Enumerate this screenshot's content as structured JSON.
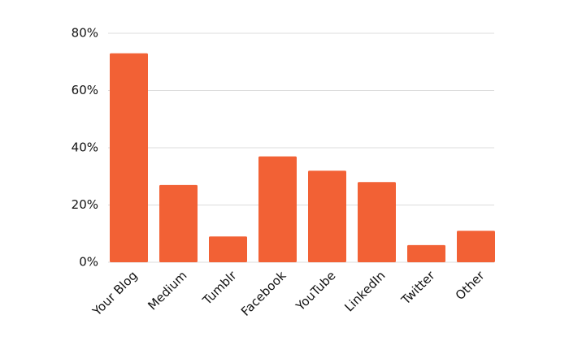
{
  "chart_data": {
    "type": "bar",
    "categories": [
      "Your Blog",
      "Medium",
      "Tumblr",
      "Facebook",
      "YouTube",
      "LinkedIn",
      "Twitter",
      "Other"
    ],
    "values": [
      73,
      27,
      9,
      37,
      32,
      28,
      6,
      11
    ],
    "color": "#f26135",
    "ylim": [
      0,
      80
    ],
    "yticks": [
      {
        "value": 0,
        "label": "0%"
      },
      {
        "value": 20,
        "label": "20%"
      },
      {
        "value": 40,
        "label": "40%"
      },
      {
        "value": 60,
        "label": "60%"
      },
      {
        "value": 80,
        "label": "80%"
      }
    ],
    "grid": true
  }
}
